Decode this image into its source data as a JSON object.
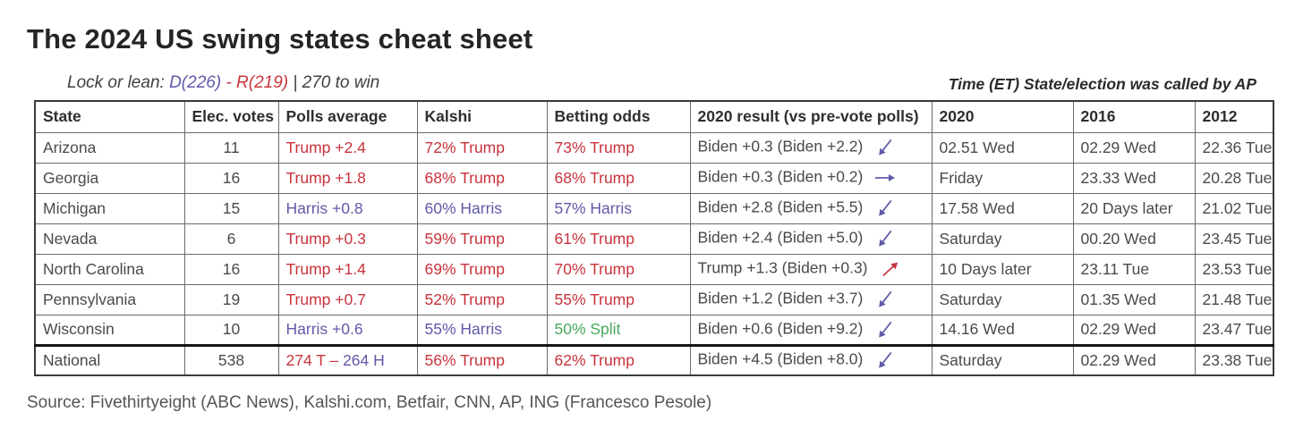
{
  "colors": {
    "red": "#c8333c",
    "blue": "#5f5aa8",
    "green": "#4aa85e",
    "gray": "#4a4a4a"
  },
  "header": {
    "lock_prefix": "Lock or lean: ",
    "dem_count": "D(226)",
    "rep_count": "- R(219)",
    "win_suffix": "| 270 to win",
    "ap_note": "Time (ET) State/election was called by AP"
  },
  "source": "Source: Fivethirtyeight (ABC News), Kalshi.com, Betfair, CNN, AP, ING (Francesco Pesole)",
  "chart_data": {
    "type": "table",
    "title": "The 2024 US swing states cheat sheet",
    "columns": [
      "State",
      "Elec. votes",
      "Polls average",
      "Kalshi",
      "Betting odds",
      "2020 result (vs pre-vote polls)",
      "2020",
      "2016",
      "2012"
    ],
    "rows": [
      {
        "state": "Arizona",
        "ev": "11",
        "polls": [
          {
            "text": "Trump +2.4",
            "color": "red"
          }
        ],
        "kalshi": {
          "text": "72% Trump",
          "color": "red"
        },
        "betting": {
          "text": "73% Trump",
          "color": "red"
        },
        "result": "Biden +0.3 (Biden +2.2)",
        "trend": {
          "icon": "arrow-down-left",
          "color": "blue"
        },
        "t2020": "02.51 Wed",
        "t2016": "02.29 Wed",
        "t2012": "22.36 Tue",
        "separator_above": false
      },
      {
        "state": "Georgia",
        "ev": "16",
        "polls": [
          {
            "text": "Trump +1.8",
            "color": "red"
          }
        ],
        "kalshi": {
          "text": "68% Trump",
          "color": "red"
        },
        "betting": {
          "text": "68% Trump",
          "color": "red"
        },
        "result": "Biden +0.3 (Biden +0.2)",
        "trend": {
          "icon": "arrow-right",
          "color": "blue"
        },
        "t2020": "Friday",
        "t2016": "23.33 Wed",
        "t2012": "20.28 Tue",
        "separator_above": false
      },
      {
        "state": "Michigan",
        "ev": "15",
        "polls": [
          {
            "text": "Harris +0.8",
            "color": "blue"
          }
        ],
        "kalshi": {
          "text": "60% Harris",
          "color": "blue"
        },
        "betting": {
          "text": "57% Harris",
          "color": "blue"
        },
        "result": "Biden +2.8 (Biden +5.5)",
        "trend": {
          "icon": "arrow-down-left",
          "color": "blue"
        },
        "t2020": "17.58 Wed",
        "t2016": "20 Days later",
        "t2012": "21.02 Tue",
        "separator_above": false
      },
      {
        "state": "Nevada",
        "ev": "6",
        "polls": [
          {
            "text": "Trump +0.3",
            "color": "red"
          }
        ],
        "kalshi": {
          "text": "59% Trump",
          "color": "red"
        },
        "betting": {
          "text": "61% Trump",
          "color": "red"
        },
        "result": "Biden +2.4 (Biden +5.0)",
        "trend": {
          "icon": "arrow-down-left",
          "color": "blue"
        },
        "t2020": "Saturday",
        "t2016": "00.20 Wed",
        "t2012": "23.45 Tue",
        "separator_above": false
      },
      {
        "state": "North Carolina",
        "ev": "16",
        "polls": [
          {
            "text": "Trump +1.4",
            "color": "red"
          }
        ],
        "kalshi": {
          "text": "69% Trump",
          "color": "red"
        },
        "betting": {
          "text": "70% Trump",
          "color": "red"
        },
        "result": "Trump +1.3 (Biden +0.3)",
        "trend": {
          "icon": "arrow-up-right",
          "color": "red"
        },
        "t2020": "10 Days later",
        "t2016": "23.11 Tue",
        "t2012": "23.53 Tue",
        "separator_above": false
      },
      {
        "state": "Pennsylvania",
        "ev": "19",
        "polls": [
          {
            "text": "Trump +0.7",
            "color": "red"
          }
        ],
        "kalshi": {
          "text": "52% Trump",
          "color": "red"
        },
        "betting": {
          "text": "55% Trump",
          "color": "red"
        },
        "result": "Biden +1.2 (Biden +3.7)",
        "trend": {
          "icon": "arrow-down-left",
          "color": "blue"
        },
        "t2020": "Saturday",
        "t2016": "01.35 Wed",
        "t2012": "21.48 Tue",
        "separator_above": false
      },
      {
        "state": "Wisconsin",
        "ev": "10",
        "polls": [
          {
            "text": "Harris +0.6",
            "color": "blue"
          }
        ],
        "kalshi": {
          "text": "55% Harris",
          "color": "blue"
        },
        "betting": {
          "text": "50% Split",
          "color": "green"
        },
        "result": "Biden +0.6 (Biden +9.2)",
        "trend": {
          "icon": "arrow-down-left",
          "color": "blue"
        },
        "t2020": "14.16 Wed",
        "t2016": "02.29 Wed",
        "t2012": "23.47 Tue",
        "separator_above": false
      },
      {
        "state": "National",
        "ev": "538",
        "polls": [
          {
            "text": "274 T – ",
            "color": "red"
          },
          {
            "text": "264 H",
            "color": "blue"
          }
        ],
        "kalshi": {
          "text": "56% Trump",
          "color": "red"
        },
        "betting": {
          "text": "62% Trump",
          "color": "red"
        },
        "result": "Biden +4.5 (Biden +8.0)",
        "trend": {
          "icon": "arrow-down-left",
          "color": "blue"
        },
        "t2020": "Saturday",
        "t2016": "02.29 Wed",
        "t2012": "23.38 Tue",
        "separator_above": true
      }
    ]
  }
}
